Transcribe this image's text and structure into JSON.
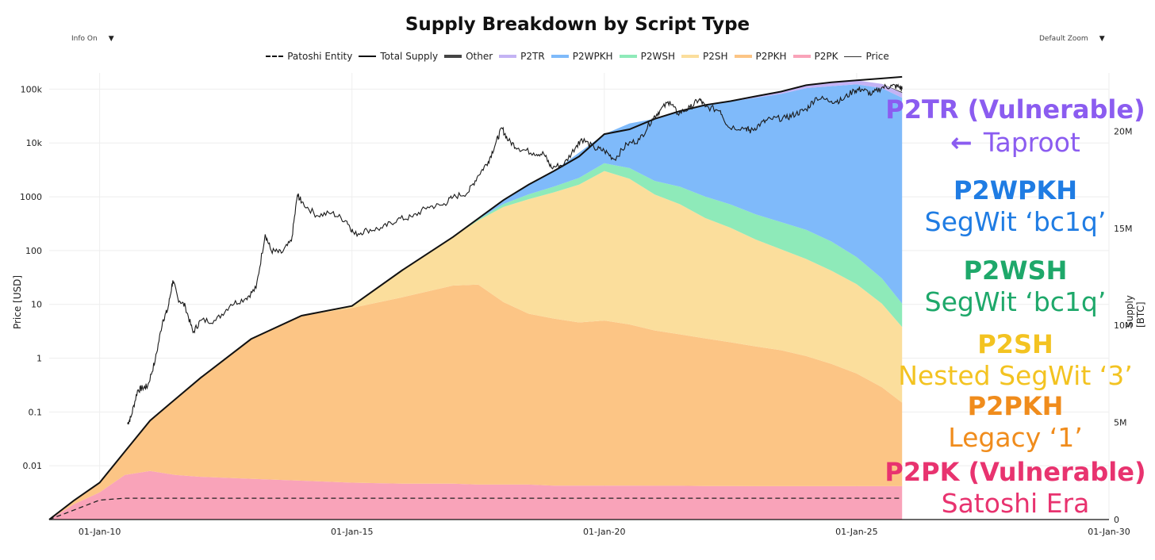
{
  "controls": {
    "info": "Info On",
    "zoom": "Default Zoom",
    "dropdown_glyph": "▼"
  },
  "colors": {
    "p2pk": "#f9a3b9",
    "p2pkh": "#fcc585",
    "p2sh": "#fbde9c",
    "p2wsh": "#8eeab9",
    "p2wpkh": "#7fbafa",
    "p2tr": "#c4b3f4",
    "other": "#444444"
  },
  "annotations": [
    {
      "title": "P2TR (Vulnerable)",
      "sub": "Taproot",
      "title_color": "#8b5cf0",
      "sub_color": "#8b5cf0",
      "arrow": "←"
    },
    {
      "title": "P2WPKH",
      "sub": "SegWit ‘bc1q’",
      "title_color": "#1f7ce3",
      "sub_color": "#1f7ce3"
    },
    {
      "title": "P2WSH",
      "sub": "SegWit ‘bc1q’",
      "title_color": "#1ea86a",
      "sub_color": "#1ea86a"
    },
    {
      "title": "P2SH",
      "sub": "Nested SegWit ‘3’",
      "title_color": "#f3c321",
      "sub_color": "#f3c321"
    },
    {
      "title": "P2PKH",
      "sub": "Legacy ‘1’",
      "title_color": "#f08c1c",
      "sub_color": "#f08c1c"
    },
    {
      "title": "P2PK (Vulnerable)",
      "sub": "Satoshi Era",
      "title_color": "#e8336f",
      "sub_color": "#e8336f"
    }
  ],
  "chart_data": {
    "type": "area",
    "title": "Supply Breakdown by Script Type",
    "ylabel_left": "Price [USD]",
    "ylabel_right": "Supply [BTC]",
    "legend": [
      "Patoshi Entity",
      "Total Supply",
      "Other",
      "P2TR",
      "P2WPKH",
      "P2WSH",
      "P2SH",
      "P2PKH",
      "P2PK",
      "Price"
    ],
    "x_range": [
      2009.0,
      2030.0
    ],
    "x_ticks": [
      {
        "v": 2010,
        "label": "01-Jan-10"
      },
      {
        "v": 2015,
        "label": "01-Jan-15"
      },
      {
        "v": 2020,
        "label": "01-Jan-20"
      },
      {
        "v": 2025,
        "label": "01-Jan-25"
      },
      {
        "v": 2030,
        "label": "01-Jan-30"
      }
    ],
    "price_axis_log_range": [
      0.001,
      200000
    ],
    "price_ticks": [
      {
        "v": 100000,
        "label": "100k"
      },
      {
        "v": 10000,
        "label": "10k"
      },
      {
        "v": 1000,
        "label": "1000"
      },
      {
        "v": 100,
        "label": "100"
      },
      {
        "v": 10,
        "label": "10"
      },
      {
        "v": 1,
        "label": "1"
      },
      {
        "v": 0.1,
        "label": "0.1"
      },
      {
        "v": 0.01,
        "label": "0.01"
      }
    ],
    "supply_range_btc": [
      0,
      23000000
    ],
    "supply_ticks": [
      {
        "v": 0,
        "label": "0"
      },
      {
        "v": 5000000,
        "label": "5M"
      },
      {
        "v": 10000000,
        "label": "10M"
      },
      {
        "v": 15000000,
        "label": "15M"
      },
      {
        "v": 20000000,
        "label": "20M"
      }
    ],
    "dates": [
      2009.0,
      2009.5,
      2010.0,
      2010.5,
      2011.0,
      2011.5,
      2012.0,
      2013.0,
      2014.0,
      2015.0,
      2016.0,
      2017.0,
      2017.5,
      2018.0,
      2018.5,
      2019.0,
      2019.5,
      2020.0,
      2020.5,
      2021.0,
      2021.5,
      2022.0,
      2022.5,
      2023.0,
      2023.5,
      2024.0,
      2024.5,
      2025.0,
      2025.5,
      2025.9
    ],
    "series": [
      {
        "name": "P2PK",
        "values": [
          0,
          0.8,
          1.4,
          2.3,
          2.5,
          2.3,
          2.2,
          2.1,
          2.0,
          1.9,
          1.85,
          1.85,
          1.8,
          1.8,
          1.8,
          1.75,
          1.75,
          1.75,
          1.75,
          1.74,
          1.74,
          1.73,
          1.73,
          1.72,
          1.72,
          1.72,
          1.72,
          1.72,
          1.72,
          1.72
        ]
      },
      {
        "name": "P2PKH",
        "values": [
          0,
          0.2,
          0.5,
          1.2,
          2.6,
          3.9,
          5.1,
          7.2,
          8.5,
          9.0,
          9.6,
          10.2,
          10.3,
          9.4,
          8.8,
          8.6,
          8.4,
          8.5,
          8.3,
          8.0,
          7.8,
          7.6,
          7.4,
          7.2,
          7.0,
          6.7,
          6.3,
          5.8,
          5.1,
          4.3
        ]
      },
      {
        "name": "P2SH",
        "values": [
          0,
          0,
          0,
          0,
          0,
          0,
          0,
          0,
          0,
          0.1,
          1.4,
          2.5,
          3.3,
          4.9,
          5.9,
          6.5,
          7.1,
          7.7,
          7.5,
          7.0,
          6.7,
          6.2,
          5.9,
          5.5,
          5.2,
          5.0,
          4.8,
          4.6,
          4.3,
          3.9
        ]
      },
      {
        "name": "P2WSH",
        "values": [
          0,
          0,
          0,
          0,
          0,
          0,
          0,
          0,
          0,
          0,
          0,
          0,
          0.05,
          0.15,
          0.25,
          0.3,
          0.35,
          0.4,
          0.55,
          0.7,
          0.9,
          1.1,
          1.2,
          1.3,
          1.4,
          1.5,
          1.5,
          1.4,
          1.3,
          1.2
        ]
      },
      {
        "name": "P2WPKH",
        "values": [
          0,
          0,
          0,
          0,
          0,
          0,
          0,
          0,
          0,
          0,
          0,
          0,
          0.05,
          0.2,
          0.5,
          0.8,
          1.3,
          1.5,
          2.3,
          3.2,
          3.9,
          4.7,
          5.3,
          6.0,
          6.6,
          7.3,
          8.0,
          8.9,
          9.8,
          10.6
        ]
      },
      {
        "name": "P2TR",
        "values": [
          0,
          0,
          0,
          0,
          0,
          0,
          0,
          0,
          0,
          0,
          0,
          0,
          0,
          0,
          0,
          0,
          0,
          0,
          0,
          0,
          0,
          0.02,
          0.04,
          0.08,
          0.12,
          0.15,
          0.18,
          0.2,
          0.22,
          0.25
        ]
      },
      {
        "name": "Other",
        "values": [
          0,
          0,
          0,
          0,
          0,
          0,
          0,
          0,
          0,
          0,
          0,
          0,
          0,
          0,
          0,
          0,
          0,
          0,
          0,
          0,
          0,
          0,
          0,
          0,
          0,
          0,
          0,
          0,
          0,
          0.05
        ]
      }
    ],
    "total_supply_millions": [
      0,
      1.0,
      1.9,
      3.5,
      5.1,
      6.2,
      7.3,
      9.3,
      10.5,
      11.0,
      12.85,
      14.55,
      15.5,
      16.45,
      17.25,
      17.95,
      18.7,
      19.85,
      20.1,
      20.64,
      21.04,
      21.35,
      21.55,
      21.8,
      22.04,
      22.37,
      22.52,
      22.62,
      22.72,
      22.8
    ],
    "patoshi_millions": [
      0,
      0.5,
      1.0,
      1.1,
      1.1,
      1.1,
      1.1,
      1.1,
      1.1,
      1.1,
      1.1,
      1.1,
      1.1,
      1.1,
      1.1,
      1.1,
      1.1,
      1.1,
      1.1,
      1.1,
      1.1,
      1.1,
      1.1,
      1.1,
      1.1,
      1.1,
      1.1,
      1.1,
      1.1,
      1.1
    ],
    "price_usd": [
      [
        2010.55,
        0.06
      ],
      [
        2010.62,
        0.08
      ],
      [
        2010.75,
        0.25
      ],
      [
        2010.85,
        0.28
      ],
      [
        2010.95,
        0.3
      ],
      [
        2011.1,
        0.9
      ],
      [
        2011.25,
        5
      ],
      [
        2011.35,
        8
      ],
      [
        2011.45,
        28
      ],
      [
        2011.55,
        13
      ],
      [
        2011.7,
        9
      ],
      [
        2011.85,
        3
      ],
      [
        2012.0,
        5
      ],
      [
        2012.3,
        5
      ],
      [
        2012.6,
        10
      ],
      [
        2012.9,
        13
      ],
      [
        2013.1,
        20
      ],
      [
        2013.28,
        200
      ],
      [
        2013.4,
        100
      ],
      [
        2013.6,
        90
      ],
      [
        2013.8,
        150
      ],
      [
        2013.92,
        1100
      ],
      [
        2014.0,
        800
      ],
      [
        2014.3,
        450
      ],
      [
        2014.6,
        500
      ],
      [
        2014.9,
        350
      ],
      [
        2015.05,
        200
      ],
      [
        2015.3,
        240
      ],
      [
        2015.6,
        260
      ],
      [
        2015.9,
        380
      ],
      [
        2016.2,
        420
      ],
      [
        2016.5,
        650
      ],
      [
        2016.8,
        700
      ],
      [
        2017.0,
        980
      ],
      [
        2017.3,
        1200
      ],
      [
        2017.5,
        2500
      ],
      [
        2017.7,
        4500
      ],
      [
        2017.85,
        10000
      ],
      [
        2017.97,
        19000
      ],
      [
        2018.1,
        11000
      ],
      [
        2018.3,
        8000
      ],
      [
        2018.6,
        6500
      ],
      [
        2018.8,
        6300
      ],
      [
        2018.95,
        3500
      ],
      [
        2019.2,
        4000
      ],
      [
        2019.45,
        9000
      ],
      [
        2019.55,
        12000
      ],
      [
        2019.8,
        8000
      ],
      [
        2020.0,
        7200
      ],
      [
        2020.2,
        5000
      ],
      [
        2020.45,
        9500
      ],
      [
        2020.7,
        11500
      ],
      [
        2020.95,
        28000
      ],
      [
        2021.1,
        40000
      ],
      [
        2021.3,
        60000
      ],
      [
        2021.45,
        35000
      ],
      [
        2021.7,
        45000
      ],
      [
        2021.88,
        65000
      ],
      [
        2022.0,
        47000
      ],
      [
        2022.3,
        40000
      ],
      [
        2022.45,
        20000
      ],
      [
        2022.8,
        19000
      ],
      [
        2022.9,
        16500
      ],
      [
        2023.1,
        23000
      ],
      [
        2023.3,
        28000
      ],
      [
        2023.6,
        29000
      ],
      [
        2023.8,
        35000
      ],
      [
        2024.0,
        42000
      ],
      [
        2024.2,
        70000
      ],
      [
        2024.5,
        60000
      ],
      [
        2024.7,
        62000
      ],
      [
        2024.95,
        95000
      ],
      [
        2025.1,
        100000
      ],
      [
        2025.3,
        80000
      ],
      [
        2025.5,
        108000
      ],
      [
        2025.7,
        115000
      ],
      [
        2025.85,
        110000
      ],
      [
        2025.9,
        100000
      ]
    ]
  }
}
